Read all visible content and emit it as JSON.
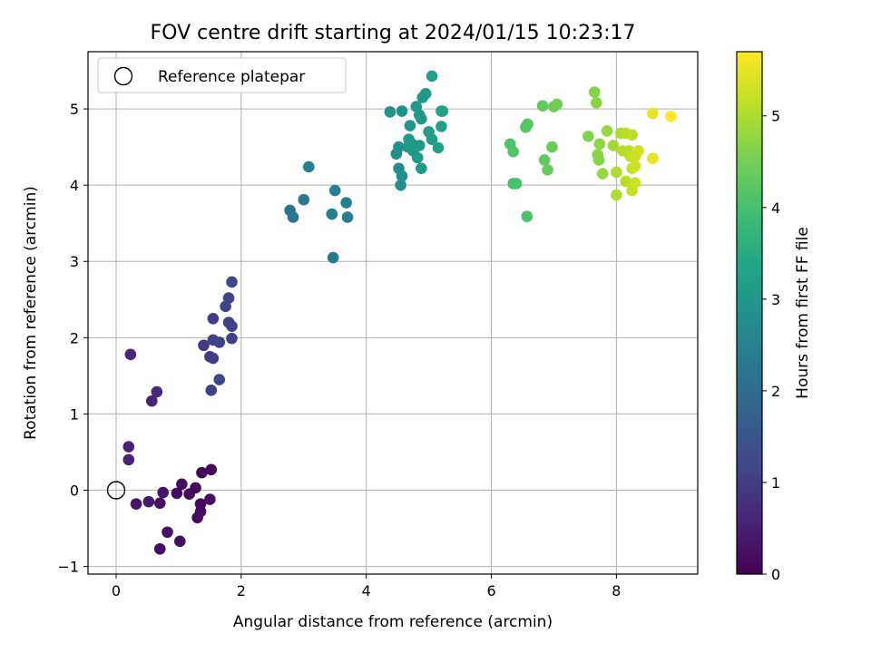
{
  "chart_data": {
    "type": "scatter",
    "title": "FOV centre drift starting at 2024/01/15 10:23:17",
    "xlabel": "Angular distance from reference (arcmin)",
    "ylabel": "Rotation from reference (arcmin)",
    "colorbar_label": "Hours from first FF file",
    "xlim": [
      -0.45,
      9.3
    ],
    "ylim": [
      -1.1,
      5.75
    ],
    "xticks": [
      0,
      2,
      4,
      6,
      8
    ],
    "yticks": [
      -1,
      0,
      1,
      2,
      3,
      4,
      5
    ],
    "clim": [
      0,
      5.7
    ],
    "colorbar_ticks": [
      0,
      1,
      2,
      3,
      4,
      5
    ],
    "colormap": "viridis",
    "grid": true,
    "legend": {
      "location": "upper-left",
      "entries": [
        "Reference platepar"
      ]
    },
    "reference_point": {
      "x": 0,
      "y": 0
    },
    "points": [
      {
        "x": 0.7,
        "y": -0.77,
        "h": 0.2
      },
      {
        "x": 1.02,
        "y": -0.67,
        "h": 0.25
      },
      {
        "x": 0.82,
        "y": -0.55,
        "h": 0.3
      },
      {
        "x": 1.3,
        "y": -0.36,
        "h": 0.15
      },
      {
        "x": 1.35,
        "y": -0.28,
        "h": 0.2
      },
      {
        "x": 1.35,
        "y": -0.18,
        "h": 0.1
      },
      {
        "x": 1.5,
        "y": -0.12,
        "h": 0.25
      },
      {
        "x": 0.32,
        "y": -0.18,
        "h": 0.35
      },
      {
        "x": 0.52,
        "y": -0.15,
        "h": 0.4
      },
      {
        "x": 0.7,
        "y": -0.17,
        "h": 0.3
      },
      {
        "x": 0.75,
        "y": -0.03,
        "h": 0.3
      },
      {
        "x": 0.97,
        "y": -0.04,
        "h": 0.2
      },
      {
        "x": 1.17,
        "y": -0.05,
        "h": 0.15
      },
      {
        "x": 1.27,
        "y": 0.03,
        "h": 0.1
      },
      {
        "x": 1.05,
        "y": 0.08,
        "h": 0.2
      },
      {
        "x": 1.37,
        "y": 0.23,
        "h": 0.05
      },
      {
        "x": 1.52,
        "y": 0.27,
        "h": 0.1
      },
      {
        "x": 0.2,
        "y": 0.4,
        "h": 0.55
      },
      {
        "x": 0.2,
        "y": 0.57,
        "h": 0.55
      },
      {
        "x": 0.57,
        "y": 1.17,
        "h": 0.6
      },
      {
        "x": 0.65,
        "y": 1.29,
        "h": 0.7
      },
      {
        "x": 0.23,
        "y": 1.78,
        "h": 0.6
      },
      {
        "x": 1.52,
        "y": 1.31,
        "h": 1.1
      },
      {
        "x": 1.65,
        "y": 1.45,
        "h": 1.2
      },
      {
        "x": 1.5,
        "y": 1.75,
        "h": 1.0
      },
      {
        "x": 1.55,
        "y": 1.73,
        "h": 1.0
      },
      {
        "x": 1.4,
        "y": 1.9,
        "h": 0.95
      },
      {
        "x": 1.55,
        "y": 1.97,
        "h": 1.05
      },
      {
        "x": 1.65,
        "y": 1.94,
        "h": 1.1
      },
      {
        "x": 1.85,
        "y": 1.99,
        "h": 1.1
      },
      {
        "x": 1.55,
        "y": 2.25,
        "h": 1.0
      },
      {
        "x": 1.8,
        "y": 2.2,
        "h": 1.05
      },
      {
        "x": 1.85,
        "y": 2.15,
        "h": 1.1
      },
      {
        "x": 1.75,
        "y": 2.41,
        "h": 1.15
      },
      {
        "x": 1.8,
        "y": 2.52,
        "h": 1.15
      },
      {
        "x": 1.85,
        "y": 2.73,
        "h": 1.2
      },
      {
        "x": 2.78,
        "y": 3.67,
        "h": 2.2
      },
      {
        "x": 2.83,
        "y": 3.58,
        "h": 2.25
      },
      {
        "x": 3.0,
        "y": 3.81,
        "h": 2.3
      },
      {
        "x": 3.08,
        "y": 4.24,
        "h": 2.4
      },
      {
        "x": 3.45,
        "y": 3.62,
        "h": 2.35
      },
      {
        "x": 3.47,
        "y": 3.05,
        "h": 2.3
      },
      {
        "x": 3.5,
        "y": 3.93,
        "h": 2.4
      },
      {
        "x": 3.68,
        "y": 3.77,
        "h": 2.45
      },
      {
        "x": 3.7,
        "y": 3.58,
        "h": 2.4
      },
      {
        "x": 4.55,
        "y": 4.0,
        "h": 2.7
      },
      {
        "x": 4.57,
        "y": 4.12,
        "h": 2.75
      },
      {
        "x": 4.52,
        "y": 4.22,
        "h": 2.8
      },
      {
        "x": 4.48,
        "y": 4.41,
        "h": 2.8
      },
      {
        "x": 4.52,
        "y": 4.5,
        "h": 2.85
      },
      {
        "x": 4.38,
        "y": 4.96,
        "h": 2.9
      },
      {
        "x": 4.57,
        "y": 4.97,
        "h": 2.85
      },
      {
        "x": 4.67,
        "y": 4.5,
        "h": 3.0
      },
      {
        "x": 4.72,
        "y": 4.55,
        "h": 3.0
      },
      {
        "x": 4.68,
        "y": 4.6,
        "h": 3.1
      },
      {
        "x": 4.75,
        "y": 4.45,
        "h": 3.05
      },
      {
        "x": 4.7,
        "y": 4.78,
        "h": 3.0
      },
      {
        "x": 4.82,
        "y": 4.36,
        "h": 3.05
      },
      {
        "x": 4.85,
        "y": 4.52,
        "h": 3.1
      },
      {
        "x": 4.88,
        "y": 4.22,
        "h": 3.1
      },
      {
        "x": 4.8,
        "y": 5.03,
        "h": 3.0
      },
      {
        "x": 4.85,
        "y": 4.92,
        "h": 3.05
      },
      {
        "x": 4.88,
        "y": 4.87,
        "h": 3.05
      },
      {
        "x": 4.9,
        "y": 5.15,
        "h": 3.1
      },
      {
        "x": 4.95,
        "y": 5.2,
        "h": 3.1
      },
      {
        "x": 5.0,
        "y": 4.7,
        "h": 3.15
      },
      {
        "x": 5.05,
        "y": 4.6,
        "h": 3.15
      },
      {
        "x": 5.05,
        "y": 5.43,
        "h": 3.2
      },
      {
        "x": 5.15,
        "y": 4.49,
        "h": 3.25
      },
      {
        "x": 5.2,
        "y": 4.77,
        "h": 3.25
      },
      {
        "x": 5.22,
        "y": 4.97,
        "h": 3.3
      },
      {
        "x": 5.2,
        "y": 4.97,
        "h": 3.3
      },
      {
        "x": 6.3,
        "y": 4.54,
        "h": 4.1
      },
      {
        "x": 6.35,
        "y": 4.44,
        "h": 4.15
      },
      {
        "x": 6.35,
        "y": 4.02,
        "h": 4.1
      },
      {
        "x": 6.4,
        "y": 4.02,
        "h": 4.05
      },
      {
        "x": 6.55,
        "y": 4.76,
        "h": 4.15
      },
      {
        "x": 6.58,
        "y": 4.8,
        "h": 4.2
      },
      {
        "x": 6.57,
        "y": 3.59,
        "h": 4.1
      },
      {
        "x": 6.82,
        "y": 5.04,
        "h": 4.3
      },
      {
        "x": 6.85,
        "y": 4.33,
        "h": 4.3
      },
      {
        "x": 6.9,
        "y": 4.2,
        "h": 4.35
      },
      {
        "x": 6.97,
        "y": 4.5,
        "h": 4.4
      },
      {
        "x": 7.0,
        "y": 5.03,
        "h": 4.4
      },
      {
        "x": 7.05,
        "y": 5.06,
        "h": 4.45
      },
      {
        "x": 7.55,
        "y": 4.64,
        "h": 4.6
      },
      {
        "x": 7.65,
        "y": 5.22,
        "h": 4.65
      },
      {
        "x": 7.68,
        "y": 5.08,
        "h": 4.7
      },
      {
        "x": 7.7,
        "y": 4.4,
        "h": 4.7
      },
      {
        "x": 7.72,
        "y": 4.33,
        "h": 4.65
      },
      {
        "x": 7.73,
        "y": 4.54,
        "h": 4.75
      },
      {
        "x": 7.78,
        "y": 4.15,
        "h": 4.8
      },
      {
        "x": 7.85,
        "y": 4.71,
        "h": 4.8
      },
      {
        "x": 7.95,
        "y": 4.52,
        "h": 4.9
      },
      {
        "x": 8.0,
        "y": 4.17,
        "h": 5.0
      },
      {
        "x": 8.0,
        "y": 3.87,
        "h": 5.0
      },
      {
        "x": 8.07,
        "y": 4.68,
        "h": 5.0
      },
      {
        "x": 8.1,
        "y": 4.45,
        "h": 5.05
      },
      {
        "x": 8.15,
        "y": 4.05,
        "h": 5.1
      },
      {
        "x": 8.15,
        "y": 4.68,
        "h": 5.1
      },
      {
        "x": 8.2,
        "y": 4.45,
        "h": 5.1
      },
      {
        "x": 8.22,
        "y": 4.38,
        "h": 5.15
      },
      {
        "x": 8.25,
        "y": 4.66,
        "h": 5.15
      },
      {
        "x": 8.25,
        "y": 4.22,
        "h": 5.2
      },
      {
        "x": 8.25,
        "y": 3.93,
        "h": 5.2
      },
      {
        "x": 8.3,
        "y": 4.38,
        "h": 5.25
      },
      {
        "x": 8.3,
        "y": 4.25,
        "h": 5.25
      },
      {
        "x": 8.3,
        "y": 4.03,
        "h": 5.25
      },
      {
        "x": 8.35,
        "y": 4.45,
        "h": 5.3
      },
      {
        "x": 8.58,
        "y": 4.35,
        "h": 5.5
      },
      {
        "x": 8.58,
        "y": 4.94,
        "h": 5.5
      },
      {
        "x": 8.87,
        "y": 4.9,
        "h": 5.7
      }
    ]
  }
}
